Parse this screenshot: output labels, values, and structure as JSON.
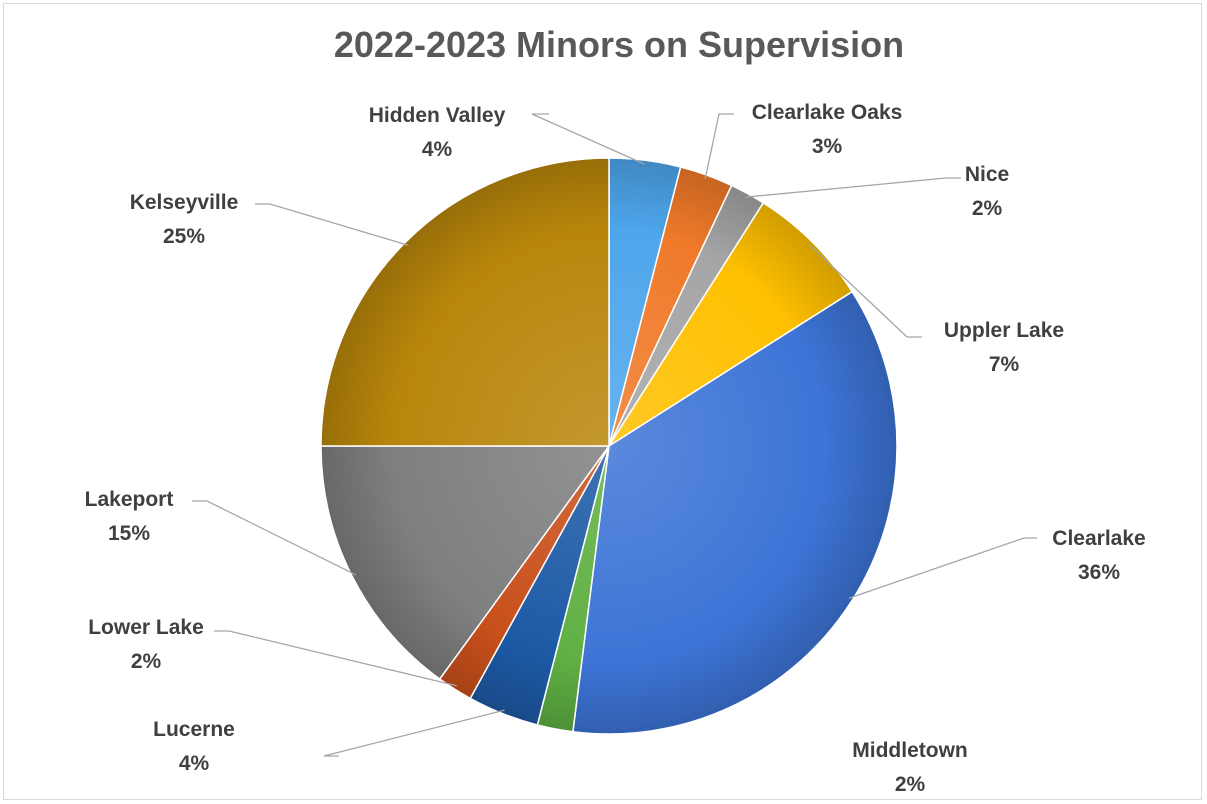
{
  "chart_data": {
    "type": "pie",
    "title": "2022-2023 Minors on Supervision",
    "start_angle_deg": 0,
    "direction": "clockwise",
    "slices": [
      {
        "name": "Hidden Valley",
        "value": 4,
        "label": "4%",
        "color": "#4ea6ec"
      },
      {
        "name": "Clearlake Oaks",
        "value": 3,
        "label": "3%",
        "color": "#f07a2a"
      },
      {
        "name": "Nice",
        "value": 2,
        "label": "2%",
        "color": "#a5a5a5"
      },
      {
        "name": "Uppler Lake",
        "value": 7,
        "label": "7%",
        "color": "#ffc000"
      },
      {
        "name": "Clearlake",
        "value": 36,
        "label": "36%",
        "color": "#3d74d6"
      },
      {
        "name": "Middletown",
        "value": 2,
        "label": "2%",
        "color": "#5fb043"
      },
      {
        "name": "Lucerne",
        "value": 4,
        "label": "4%",
        "color": "#1d5aa6"
      },
      {
        "name": "Lower Lake",
        "value": 2,
        "label": "2%",
        "color": "#c9501b"
      },
      {
        "name": "Lakeport",
        "value": 15,
        "label": "15%",
        "color": "#7f7f7f"
      },
      {
        "name": "Kelseyville",
        "value": 25,
        "label": "25%",
        "color": "#b8860b"
      }
    ]
  }
}
